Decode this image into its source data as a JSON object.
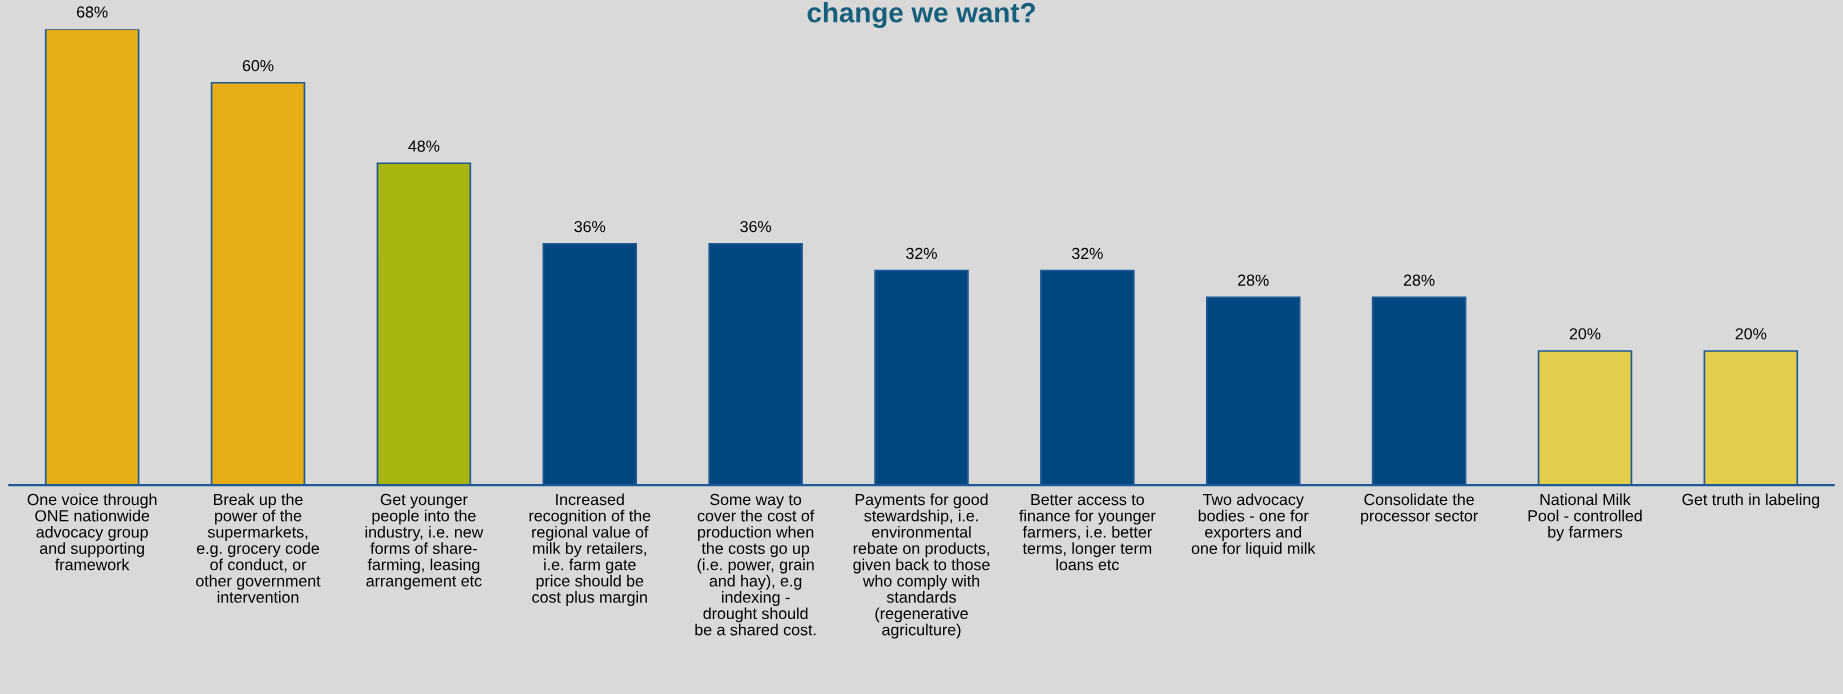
{
  "chart_data": {
    "type": "bar",
    "title": "change we want?",
    "categories": [
      "One voice through\nONE nationwide\nadvocacy group\nand supporting\nframework",
      "Break up the\npower of the\nsupermarkets,\ne.g. grocery code\nof conduct, or\nother government\nintervention",
      "Get younger\npeople into the\nindustry, i.e. new\nforms of share-\nfarming, leasing\narrangement etc",
      "Increased\nrecognition of the\nregional value of\nmilk by retailers,\ni.e. farm gate\nprice should be\ncost plus margin",
      "Some way to\ncover the cost of\nproduction when\nthe costs go up\n(i.e. power, grain\nand hay), e.g\nindexing -\ndrought should\nbe a shared cost.",
      "Payments for good\nstewardship, i.e.\nenvironmental\nrebate on products,\ngiven back to those\nwho comply with\nstandards\n(regenerative\nagriculture)",
      "Better access to\nfinance for younger\nfarmers, i.e. better\nterms, longer term\nloans etc",
      "Two advocacy\nbodies - one for\nexporters and\none for liquid milk",
      "Consolidate the\nprocessor sector",
      "National Milk\nPool - controlled\nby farmers",
      "Get truth in labeling"
    ],
    "values": [
      68,
      60,
      48,
      36,
      36,
      32,
      32,
      28,
      28,
      20,
      20
    ],
    "colors": [
      "#e6ae14",
      "#e6ae14",
      "#a6b510",
      "#00467f",
      "#00467f",
      "#00467f",
      "#00467f",
      "#00467f",
      "#00467f",
      "#e3cd4a",
      "#e3cd4a"
    ],
    "value_labels": [
      "68%",
      "60%",
      "48%",
      "36%",
      "36%",
      "32%",
      "32%",
      "28%",
      "28%",
      "20%",
      "20%"
    ],
    "grid": false,
    "legend": false
  }
}
